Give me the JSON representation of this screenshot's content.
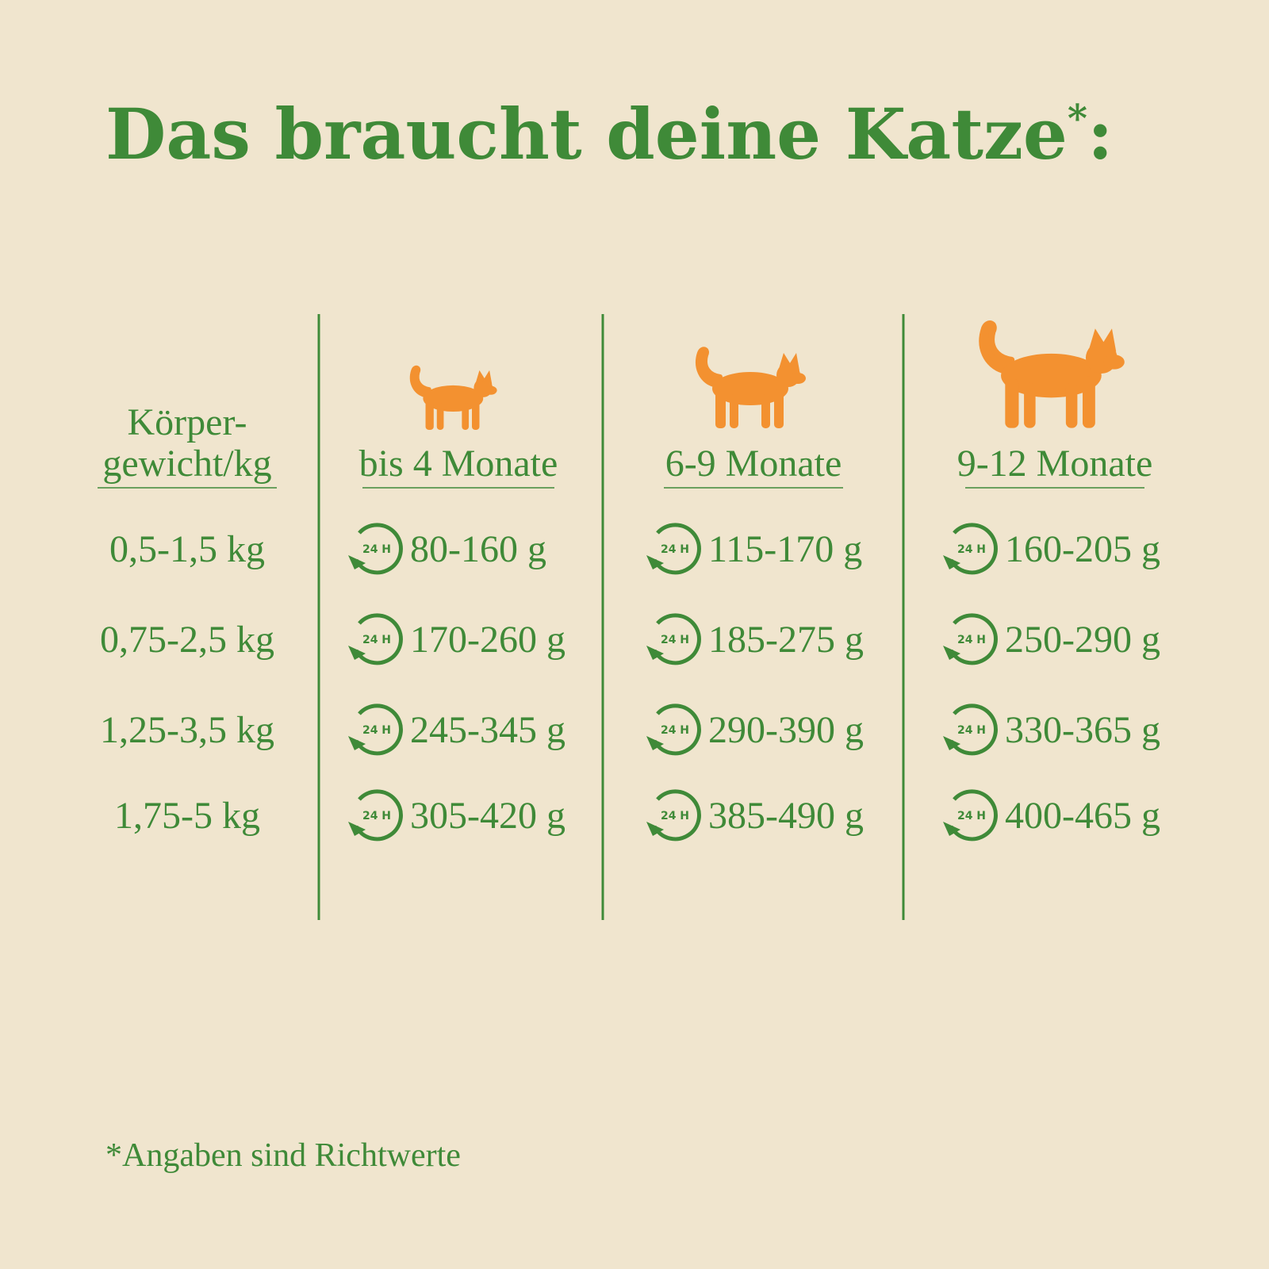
{
  "header": {
    "title": "Das braucht deine Katze",
    "title_mark": "*",
    "title_suffix": ":"
  },
  "table": {
    "header": [
      [
        "Körper-",
        "gewicht/kg"
      ],
      "bis 4 Monate",
      "6-9 Monate",
      "9-12 Monate"
    ],
    "icon_label": "24 H",
    "rows": [
      [
        "0,5-1,5 kg",
        "80-160 g",
        "115-170 g",
        "160-205 g"
      ],
      [
        "0,75-2,5 kg",
        "170-260 g",
        "185-275 g",
        "250-290 g"
      ],
      [
        "1,25-3,5 kg",
        "245-345 g",
        "290-390 g",
        "330-365 g"
      ],
      [
        "1,75-5 kg",
        "305-420 g",
        "385-490 g",
        "400-465 g"
      ]
    ]
  },
  "footnote": "*Angaben sind Richtwerte"
}
